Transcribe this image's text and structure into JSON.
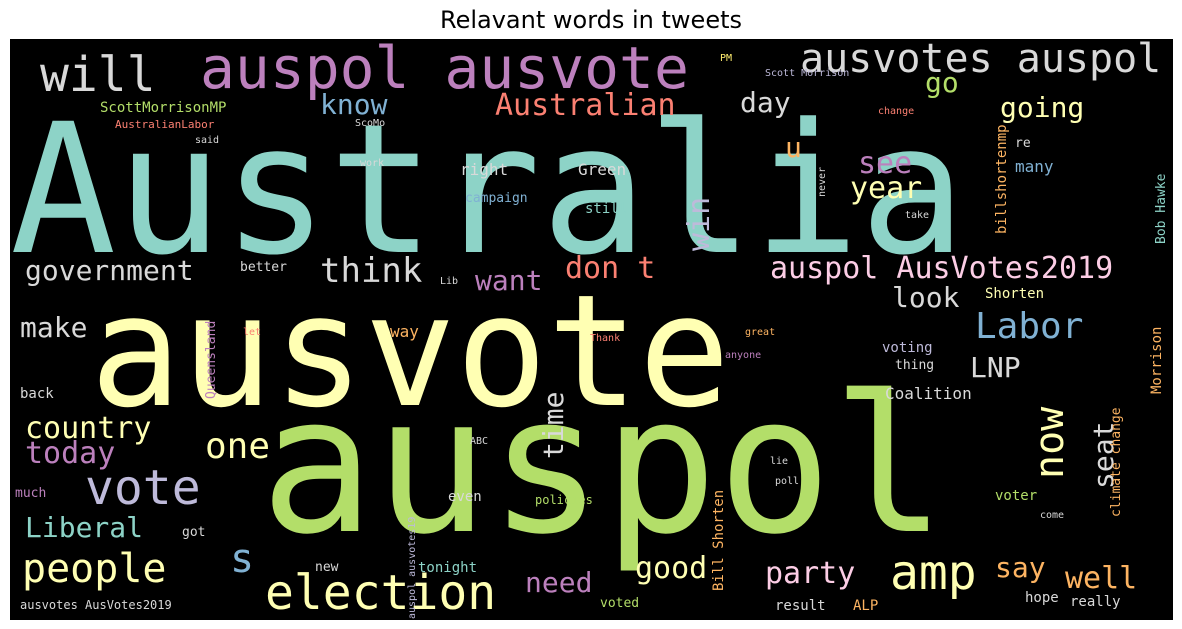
{
  "title": "Relavant words in tweets",
  "palette": {
    "teal": "#8dd3c7",
    "yellow": "#ffffb3",
    "lavender": "#bebada",
    "salmon": "#fb8072",
    "blue": "#80b1d3",
    "orange": "#fdb462",
    "green": "#b3de69",
    "pink": "#fccde5",
    "grey": "#d9d9d9",
    "purple": "#bc80bd",
    "mint": "#ccebc5",
    "gold": "#ffed6f"
  },
  "words": [
    {
      "text": "Australia",
      "color": "#8dd3c7"
    },
    {
      "text": "ausvote",
      "color": "#ffffb3"
    },
    {
      "text": "auspol",
      "color": "#b3de69"
    },
    {
      "text": "auspol ausvote",
      "color": "#bc80bd"
    },
    {
      "text": "ausvotes auspol",
      "color": "#d9d9d9"
    },
    {
      "text": "will",
      "color": "#d9d9d9"
    },
    {
      "text": "election",
      "color": "#ffffb3"
    },
    {
      "text": "vote",
      "color": "#bebada"
    },
    {
      "text": "amp",
      "color": "#ffffb3"
    },
    {
      "text": "people",
      "color": "#ffffb3"
    },
    {
      "text": "Australian",
      "color": "#fb8072"
    },
    {
      "text": "Labor",
      "color": "#80b1d3"
    },
    {
      "text": "auspol AusVotes2019",
      "color": "#fccde5"
    },
    {
      "text": "government",
      "color": "#d9d9d9"
    },
    {
      "text": "think",
      "color": "#d9d9d9"
    },
    {
      "text": "don t",
      "color": "#fb8072"
    },
    {
      "text": "know",
      "color": "#80b1d3"
    },
    {
      "text": "go",
      "color": "#b3de69"
    },
    {
      "text": "going",
      "color": "#ffffb3"
    },
    {
      "text": "day",
      "color": "#d9d9d9"
    },
    {
      "text": "year",
      "color": "#ffffb3"
    },
    {
      "text": "see",
      "color": "#bc80bd"
    },
    {
      "text": "win",
      "color": "#bebada"
    },
    {
      "text": "want",
      "color": "#bc80bd"
    },
    {
      "text": "look",
      "color": "#d9d9d9"
    },
    {
      "text": "make",
      "color": "#d9d9d9"
    },
    {
      "text": "LNP",
      "color": "#d9d9d9"
    },
    {
      "text": "country",
      "color": "#ffffb3"
    },
    {
      "text": "today",
      "color": "#bc80bd"
    },
    {
      "text": "one",
      "color": "#ffffb3"
    },
    {
      "text": "now",
      "color": "#ffffb3"
    },
    {
      "text": "time",
      "color": "#d9d9d9"
    },
    {
      "text": "seat",
      "color": "#d9d9d9"
    },
    {
      "text": "Liberal",
      "color": "#8dd3c7"
    },
    {
      "text": "s",
      "color": "#80b1d3"
    },
    {
      "text": "good",
      "color": "#ffffb3"
    },
    {
      "text": "party",
      "color": "#fccde5"
    },
    {
      "text": "need",
      "color": "#bc80bd"
    },
    {
      "text": "say",
      "color": "#fdb462"
    },
    {
      "text": "well",
      "color": "#fdb462"
    },
    {
      "text": "ScottMorrisonMP",
      "color": "#b3de69"
    },
    {
      "text": "AustralianLabor",
      "color": "#fb8072"
    },
    {
      "text": "ScoMo",
      "color": "#d9d9d9"
    },
    {
      "text": "PM",
      "color": "#ffed6f"
    },
    {
      "text": "Scott Morrison",
      "color": "#bebada"
    },
    {
      "text": "change",
      "color": "#fb8072"
    },
    {
      "text": "said",
      "color": "#d9d9d9"
    },
    {
      "text": "work",
      "color": "#d9d9d9"
    },
    {
      "text": "right",
      "color": "#d9d9d9"
    },
    {
      "text": "Green",
      "color": "#d9d9d9"
    },
    {
      "text": "u",
      "color": "#fdb462"
    },
    {
      "text": "campaign",
      "color": "#80b1d3"
    },
    {
      "text": "still",
      "color": "#8dd3c7"
    },
    {
      "text": "never",
      "color": "#d9d9d9"
    },
    {
      "text": "billshortenmp",
      "color": "#fdb462"
    },
    {
      "text": "re",
      "color": "#d9d9d9"
    },
    {
      "text": "many",
      "color": "#80b1d3"
    },
    {
      "text": "take",
      "color": "#d9d9d9"
    },
    {
      "text": "Bob Hawke",
      "color": "#8dd3c7"
    },
    {
      "text": "better",
      "color": "#d9d9d9"
    },
    {
      "text": "Lib",
      "color": "#d9d9d9"
    },
    {
      "text": "Shorten",
      "color": "#ffffb3"
    },
    {
      "text": "Queensland",
      "color": "#bc80bd"
    },
    {
      "text": "let",
      "color": "#fb8072"
    },
    {
      "text": "way",
      "color": "#fdb462"
    },
    {
      "text": "Thank",
      "color": "#fb8072"
    },
    {
      "text": "great",
      "color": "#fdb462"
    },
    {
      "text": "anyone",
      "color": "#bc80bd"
    },
    {
      "text": "voting",
      "color": "#bebada"
    },
    {
      "text": "thing",
      "color": "#d9d9d9"
    },
    {
      "text": "Coalition",
      "color": "#d9d9d9"
    },
    {
      "text": "Morrison",
      "color": "#fdb462"
    },
    {
      "text": "back",
      "color": "#d9d9d9"
    },
    {
      "text": "climate change",
      "color": "#fdb462"
    },
    {
      "text": "ABC",
      "color": "#d9d9d9"
    },
    {
      "text": "lie",
      "color": "#d9d9d9"
    },
    {
      "text": "poll",
      "color": "#d9d9d9"
    },
    {
      "text": "much",
      "color": "#bc80bd"
    },
    {
      "text": "auspol ausvotes19",
      "color": "#bebada"
    },
    {
      "text": "even",
      "color": "#d9d9d9"
    },
    {
      "text": "policies",
      "color": "#b3de69"
    },
    {
      "text": "voter",
      "color": "#b3de69"
    },
    {
      "text": "got",
      "color": "#d9d9d9"
    },
    {
      "text": "Bill Shorten",
      "color": "#fdb462"
    },
    {
      "text": "come",
      "color": "#d9d9d9"
    },
    {
      "text": "new",
      "color": "#d9d9d9"
    },
    {
      "text": "tonight",
      "color": "#8dd3c7"
    },
    {
      "text": "hope",
      "color": "#d9d9d9"
    },
    {
      "text": "really",
      "color": "#d9d9d9"
    },
    {
      "text": "result",
      "color": "#d9d9d9"
    },
    {
      "text": "ALP",
      "color": "#fdb462"
    },
    {
      "text": "voted",
      "color": "#b3de69"
    },
    {
      "text": "ausvotes AusVotes2019",
      "color": "#d9d9d9"
    }
  ]
}
